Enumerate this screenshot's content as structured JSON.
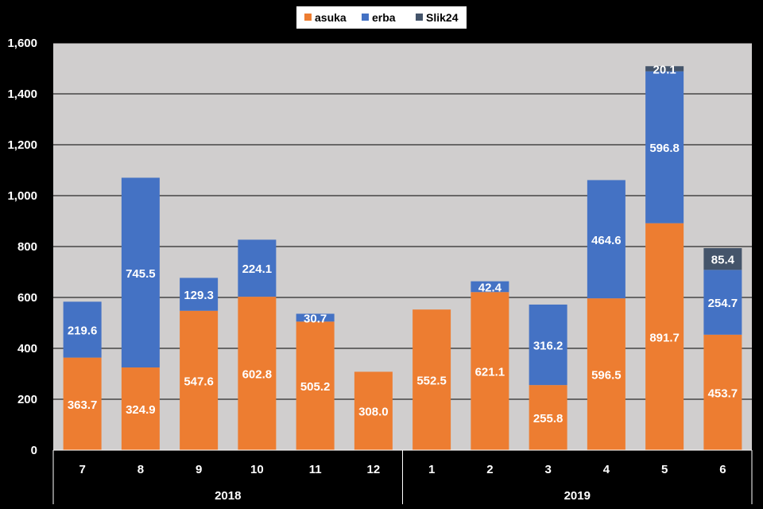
{
  "chart_data": {
    "type": "bar",
    "stacked": true,
    "categories": [
      "7",
      "8",
      "9",
      "10",
      "11",
      "12",
      "1",
      "2",
      "3",
      "4",
      "5",
      "6"
    ],
    "groups": [
      {
        "label": "2018",
        "categories": [
          "7",
          "8",
          "9",
          "10",
          "11",
          "12"
        ]
      },
      {
        "label": "2019",
        "categories": [
          "1",
          "2",
          "3",
          "4",
          "5",
          "6"
        ]
      }
    ],
    "series": [
      {
        "name": "asuka",
        "color": "#ED7D31",
        "values": [
          363.7,
          324.9,
          547.6,
          602.8,
          505.2,
          308.0,
          552.5,
          621.1,
          255.8,
          596.5,
          891.7,
          453.7
        ],
        "labels": [
          "363.7",
          "324.9",
          "547.6",
          "602.8",
          "505.2",
          "308.0",
          "552.5",
          "621.1",
          "255.8",
          "596.5",
          "891.7",
          "453.7"
        ]
      },
      {
        "name": "erba",
        "color": "#4472C4",
        "values": [
          219.6,
          745.5,
          129.3,
          224.1,
          30.7,
          0,
          0,
          42.4,
          316.2,
          464.6,
          596.8,
          254.7
        ],
        "labels": [
          "219.6",
          "745.5",
          "129.3",
          "224.1",
          "30.7",
          "",
          "",
          "42.4",
          "316.2",
          "464.6",
          "596.8",
          "254.7"
        ]
      },
      {
        "name": "Slik24",
        "color": "#44546A",
        "values": [
          0,
          0,
          0,
          0,
          0,
          0,
          0,
          0,
          0,
          0,
          20.1,
          85.4
        ],
        "labels": [
          "",
          "",
          "",
          "",
          "",
          "",
          "",
          "",
          "",
          "",
          "20.1",
          "85.4"
        ]
      }
    ],
    "ylim": [
      0,
      1600
    ],
    "yticks": [
      0,
      200,
      400,
      600,
      800,
      1000,
      1200,
      1400,
      1600
    ],
    "ytick_labels": [
      "0",
      "200",
      "400",
      "600",
      "800",
      "1,000",
      "1,200",
      "1,400",
      "1,600"
    ],
    "title": "",
    "xlabel": "",
    "ylabel": "",
    "grid": true,
    "legend_position": "top",
    "plot_background": "#D0CECE",
    "gridline_color": "#000000"
  }
}
